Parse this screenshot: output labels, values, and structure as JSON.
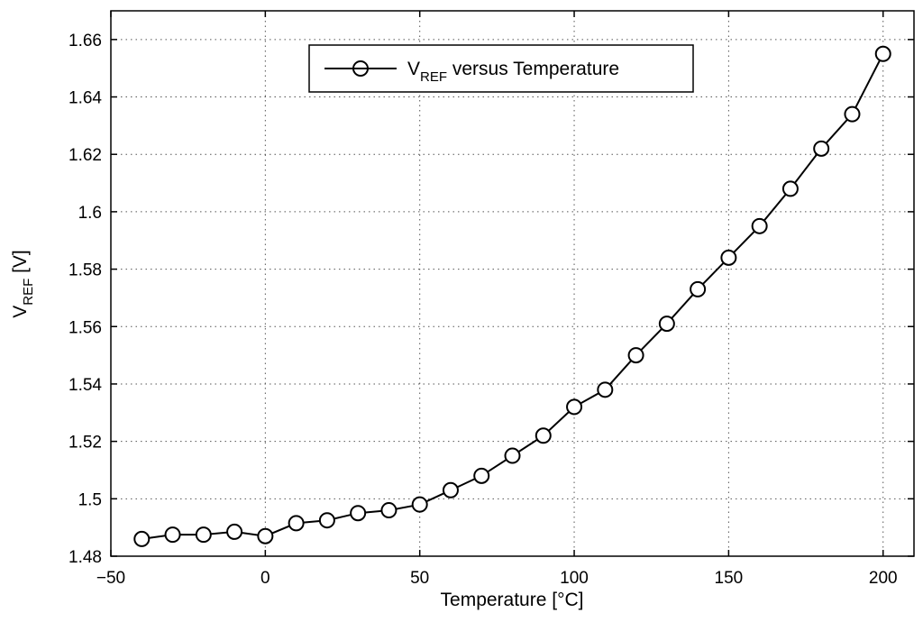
{
  "chart_data": {
    "type": "line",
    "title": "",
    "xlabel": "Temperature [°C]",
    "ylabel": {
      "main": "V",
      "sub": "REF",
      "suffix": " [V]"
    },
    "xlim": [
      -50,
      210
    ],
    "ylim": [
      1.48,
      1.67
    ],
    "xticks": [
      -50,
      0,
      50,
      100,
      150,
      200
    ],
    "xtick_labels": [
      "−50",
      "0",
      "50",
      "100",
      "150",
      "200"
    ],
    "yticks": [
      1.48,
      1.5,
      1.52,
      1.54,
      1.56,
      1.58,
      1.6,
      1.62,
      1.64,
      1.66
    ],
    "ytick_labels": [
      "1.48",
      "1.5",
      "1.52",
      "1.54",
      "1.56",
      "1.58",
      "1.6",
      "1.62",
      "1.64",
      "1.66"
    ],
    "grid": true,
    "legend": {
      "position": "top-center",
      "label": {
        "main": "V",
        "sub": "REF",
        "suffix": " versus Temperature"
      }
    },
    "series": [
      {
        "name": "VREF versus Temperature",
        "marker": "circle",
        "color": "#000000",
        "x": [
          -40,
          -30,
          -20,
          -10,
          0,
          10,
          20,
          30,
          40,
          50,
          60,
          70,
          80,
          90,
          100,
          110,
          120,
          130,
          140,
          150,
          160,
          170,
          180,
          190,
          200
        ],
        "y": [
          1.486,
          1.4875,
          1.4875,
          1.4885,
          1.487,
          1.4915,
          1.4925,
          1.495,
          1.496,
          1.498,
          1.503,
          1.508,
          1.515,
          1.522,
          1.532,
          1.538,
          1.55,
          1.561,
          1.573,
          1.584,
          1.595,
          1.608,
          1.622,
          1.634,
          1.655
        ]
      }
    ]
  }
}
